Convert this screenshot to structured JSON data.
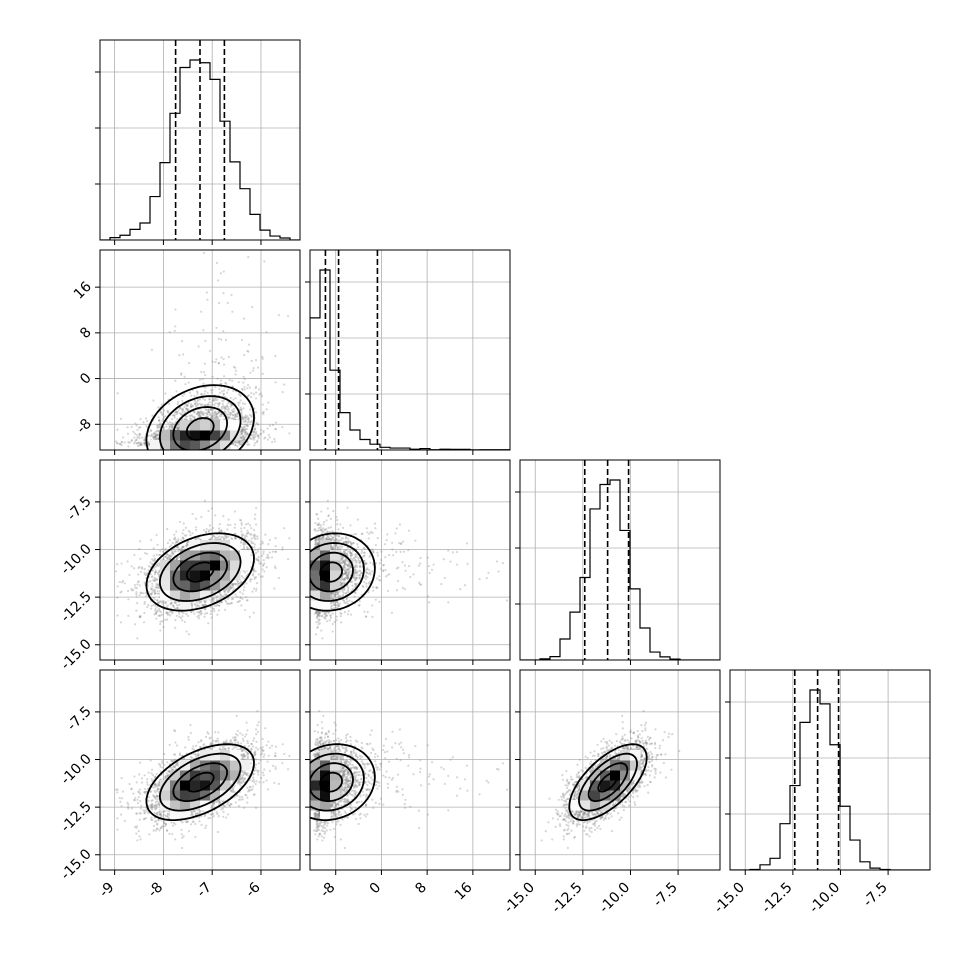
{
  "chart_data": {
    "type": "corner",
    "n_params": 4,
    "params": [
      {
        "mean": -7.25,
        "sd": 0.55,
        "skew": 0,
        "range": [
          -9.3,
          -5.2
        ],
        "ticks": [
          -9,
          -8,
          -7,
          -6
        ],
        "tick_labels": [
          "-9",
          "-8",
          "-7",
          "-6"
        ],
        "quantiles": [
          -7.75,
          -7.25,
          -6.75
        ]
      },
      {
        "mean": -6.8,
        "sd": 3.9,
        "skew": 1,
        "range": [
          -12.5,
          22.5
        ],
        "ticks": [
          -8,
          0,
          8,
          16
        ],
        "tick_labels": [
          "-8",
          "0",
          "8",
          "16"
        ],
        "quantiles": [
          -9.8,
          -7.5,
          -0.7
        ]
      },
      {
        "mean": -11.2,
        "sd": 1.0,
        "skew": 0,
        "range": [
          -15.8,
          -5.3
        ],
        "ticks": [
          -15.0,
          -12.5,
          -10.0,
          -7.5
        ],
        "tick_labels": [
          "-15.0",
          "-12.5",
          "-10.0",
          "-7.5"
        ],
        "quantiles": [
          -12.4,
          -11.2,
          -10.1
        ]
      },
      {
        "mean": -11.2,
        "sd": 1.0,
        "skew": 0,
        "range": [
          -15.8,
          -5.3
        ],
        "ticks": [
          -15.0,
          -12.5,
          -10.0,
          -7.5
        ],
        "tick_labels": [
          "-15.0",
          "-12.5",
          "-10.0",
          "-7.5"
        ],
        "quantiles": [
          -12.4,
          -11.2,
          -10.1
        ]
      }
    ],
    "correlations": [
      [
        1.0,
        0.3,
        0.35,
        0.5
      ],
      [
        0.3,
        1.0,
        0.1,
        0.15
      ],
      [
        0.35,
        0.1,
        1.0,
        0.65
      ],
      [
        0.5,
        0.15,
        0.65,
        1.0
      ]
    ],
    "contour_levels_sigma": [
      0.5,
      1.0,
      1.5,
      2.0
    ],
    "grid": true,
    "colors": {
      "line": "#000000",
      "points": "#8a8a8a",
      "grid": "#b0b0b0"
    }
  }
}
